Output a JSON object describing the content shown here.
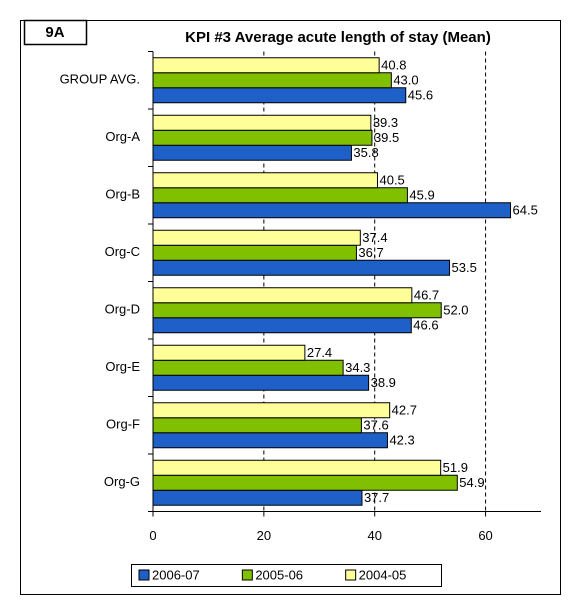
{
  "chart_data": {
    "type": "bar",
    "orientation": "horizontal",
    "badge": "9A",
    "title": "KPI #3   Average acute length of stay (Mean)",
    "categories": [
      "GROUP AVG.",
      "Org-A",
      "Org-B",
      "Org-C",
      "Org-D",
      "Org-E",
      "Org-F",
      "Org-G"
    ],
    "series": [
      {
        "name": "2006-07",
        "color": "#1f5fc8",
        "values": [
          45.6,
          35.8,
          64.5,
          53.5,
          46.6,
          38.9,
          42.3,
          37.7
        ],
        "value_labels": [
          "45.6",
          "35.8",
          "64.5",
          "53.5",
          "46.6",
          "38.9",
          "42.3",
          "37.7"
        ]
      },
      {
        "name": "2005-06",
        "color": "#80c000",
        "values": [
          43.0,
          39.5,
          45.9,
          36.7,
          52.0,
          34.3,
          37.6,
          54.9
        ],
        "value_labels": [
          "43.0",
          "39.5",
          "45.9",
          "36.7",
          "52.0",
          "34.3",
          "37.6",
          "54.9"
        ]
      },
      {
        "name": "2004-05",
        "color": "#ffff99",
        "values": [
          40.8,
          39.3,
          40.5,
          37.4,
          46.7,
          27.4,
          42.7,
          51.9
        ],
        "value_labels": [
          "40.8",
          "39.3",
          "40.5",
          "37.4",
          "46.7",
          "27.4",
          "42.7",
          "51.9"
        ]
      }
    ],
    "xlim": [
      0,
      70
    ],
    "xticks": [
      0,
      20,
      40,
      60
    ],
    "grid": true,
    "legend": "bottom"
  }
}
